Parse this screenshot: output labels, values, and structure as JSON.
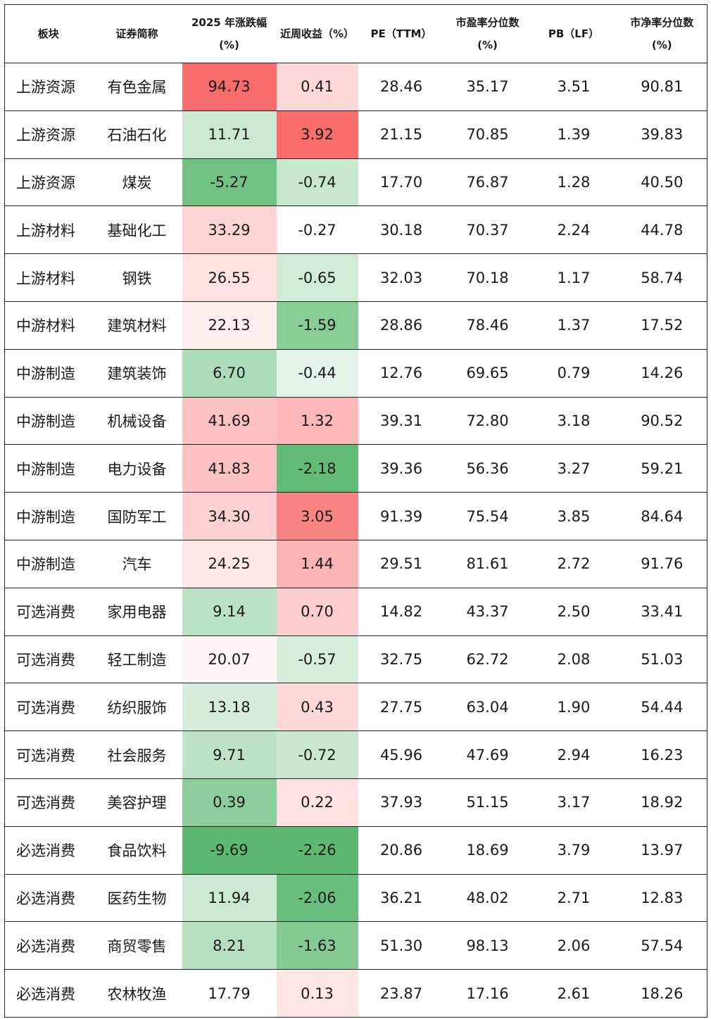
{
  "headers": {
    "sector": [
      "板块"
    ],
    "name": [
      "证券简称"
    ],
    "ret2025": [
      "2025 年涨跌幅",
      "(%)"
    ],
    "weekly": [
      "近周收益（%）"
    ],
    "pe": [
      "PE（TTM）"
    ],
    "pe_pct": [
      "市盈率分位数",
      "(%)"
    ],
    "pb": [
      "PB（LF）"
    ],
    "pb_pct": [
      "市净率分位数",
      "(%)"
    ]
  },
  "colors": {
    "positive": "#f86c6c",
    "negative": "#5db972",
    "neutral": "#ffffff"
  },
  "rows": [
    {
      "sector": "上游资源",
      "name": "有色金属",
      "ret2025": "94.73",
      "weekly": "0.41",
      "pe": "28.46",
      "pe_pct": "35.17",
      "pb": "3.51",
      "pb_pct": "90.81"
    },
    {
      "sector": "上游资源",
      "name": "石油石化",
      "ret2025": "11.71",
      "weekly": "3.92",
      "pe": "21.15",
      "pe_pct": "70.85",
      "pb": "1.39",
      "pb_pct": "39.83"
    },
    {
      "sector": "上游资源",
      "name": "煤炭",
      "ret2025": "-5.27",
      "weekly": "-0.74",
      "pe": "17.70",
      "pe_pct": "76.87",
      "pb": "1.28",
      "pb_pct": "40.50"
    },
    {
      "sector": "上游材料",
      "name": "基础化工",
      "ret2025": "33.29",
      "weekly": "-0.27",
      "pe": "30.18",
      "pe_pct": "70.37",
      "pb": "2.24",
      "pb_pct": "44.78"
    },
    {
      "sector": "上游材料",
      "name": "钢铁",
      "ret2025": "26.55",
      "weekly": "-0.65",
      "pe": "32.03",
      "pe_pct": "70.18",
      "pb": "1.17",
      "pb_pct": "58.74"
    },
    {
      "sector": "中游材料",
      "name": "建筑材料",
      "ret2025": "22.13",
      "weekly": "-1.59",
      "pe": "28.86",
      "pe_pct": "78.46",
      "pb": "1.37",
      "pb_pct": "17.52"
    },
    {
      "sector": "中游制造",
      "name": "建筑装饰",
      "ret2025": "6.70",
      "weekly": "-0.44",
      "pe": "12.76",
      "pe_pct": "69.65",
      "pb": "0.79",
      "pb_pct": "14.26"
    },
    {
      "sector": "中游制造",
      "name": "机械设备",
      "ret2025": "41.69",
      "weekly": "1.32",
      "pe": "39.31",
      "pe_pct": "72.80",
      "pb": "3.18",
      "pb_pct": "90.52"
    },
    {
      "sector": "中游制造",
      "name": "电力设备",
      "ret2025": "41.83",
      "weekly": "-2.18",
      "pe": "39.36",
      "pe_pct": "56.36",
      "pb": "3.27",
      "pb_pct": "59.21"
    },
    {
      "sector": "中游制造",
      "name": "国防军工",
      "ret2025": "34.30",
      "weekly": "3.05",
      "pe": "91.39",
      "pe_pct": "75.54",
      "pb": "3.85",
      "pb_pct": "84.64"
    },
    {
      "sector": "中游制造",
      "name": "汽车",
      "ret2025": "24.25",
      "weekly": "1.44",
      "pe": "29.51",
      "pe_pct": "81.61",
      "pb": "2.72",
      "pb_pct": "91.76"
    },
    {
      "sector": "可选消费",
      "name": "家用电器",
      "ret2025": "9.14",
      "weekly": "0.70",
      "pe": "14.82",
      "pe_pct": "43.37",
      "pb": "2.50",
      "pb_pct": "33.41"
    },
    {
      "sector": "可选消费",
      "name": "轻工制造",
      "ret2025": "20.07",
      "weekly": "-0.57",
      "pe": "32.75",
      "pe_pct": "62.72",
      "pb": "2.08",
      "pb_pct": "51.03"
    },
    {
      "sector": "可选消费",
      "name": "纺织服饰",
      "ret2025": "13.18",
      "weekly": "0.43",
      "pe": "27.75",
      "pe_pct": "63.04",
      "pb": "1.90",
      "pb_pct": "54.44"
    },
    {
      "sector": "可选消费",
      "name": "社会服务",
      "ret2025": "9.71",
      "weekly": "-0.72",
      "pe": "45.96",
      "pe_pct": "47.69",
      "pb": "2.94",
      "pb_pct": "16.23"
    },
    {
      "sector": "可选消费",
      "name": "美容护理",
      "ret2025": "0.39",
      "weekly": "0.22",
      "pe": "37.93",
      "pe_pct": "51.15",
      "pb": "3.17",
      "pb_pct": "18.92"
    },
    {
      "sector": "必选消费",
      "name": "食品饮料",
      "ret2025": "-9.69",
      "weekly": "-2.26",
      "pe": "20.86",
      "pe_pct": "18.69",
      "pb": "3.79",
      "pb_pct": "13.97"
    },
    {
      "sector": "必选消费",
      "name": "医药生物",
      "ret2025": "11.94",
      "weekly": "-2.06",
      "pe": "36.21",
      "pe_pct": "48.02",
      "pb": "2.71",
      "pb_pct": "12.83"
    },
    {
      "sector": "必选消费",
      "name": "商贸零售",
      "ret2025": "8.21",
      "weekly": "-1.63",
      "pe": "51.30",
      "pe_pct": "98.13",
      "pb": "2.06",
      "pb_pct": "57.54"
    },
    {
      "sector": "必选消费",
      "name": "农林牧渔",
      "ret2025": "17.79",
      "weekly": "0.13",
      "pe": "23.87",
      "pe_pct": "17.16",
      "pb": "2.61",
      "pb_pct": "18.26"
    }
  ]
}
